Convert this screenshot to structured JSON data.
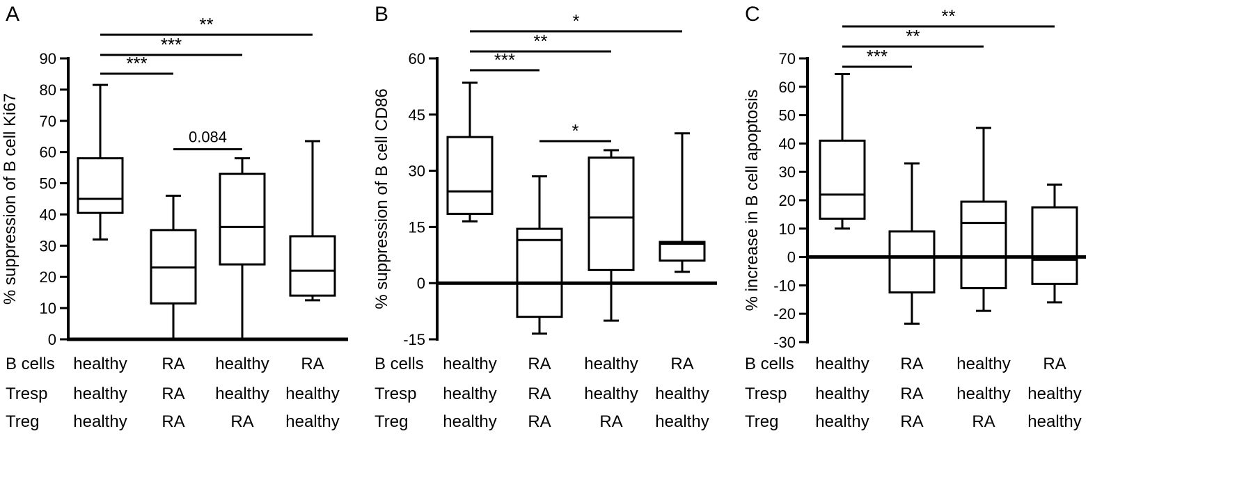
{
  "row_labels": [
    "B cells",
    "Tresp",
    "Treg"
  ],
  "chart_data": [
    {
      "type": "box",
      "panel_label": "A",
      "title": "",
      "xlabel": "",
      "ylabel": "% suppression of B cell Ki67",
      "ylim": [
        0,
        90
      ],
      "yticks": [
        0,
        10,
        20,
        30,
        40,
        50,
        60,
        70,
        80,
        90
      ],
      "categories": [
        {
          "B cells": "healthy",
          "Tresp": "healthy",
          "Treg": "healthy"
        },
        {
          "B cells": "RA",
          "Tresp": "RA",
          "Treg": "RA"
        },
        {
          "B cells": "healthy",
          "Tresp": "healthy",
          "Treg": "RA"
        },
        {
          "B cells": "RA",
          "Tresp": "healthy",
          "Treg": "healthy"
        }
      ],
      "boxes": [
        {
          "min": 32,
          "q1": 40.5,
          "median": 45,
          "q3": 58,
          "max": 81.5
        },
        {
          "min": 0,
          "q1": 11.5,
          "median": 23,
          "q3": 35,
          "max": 46
        },
        {
          "min": 0,
          "q1": 24,
          "median": 36,
          "q3": 53,
          "max": 58
        },
        {
          "min": 12.5,
          "q1": 14,
          "median": 22,
          "q3": 33,
          "max": 63.5
        }
      ],
      "significance": [
        {
          "from": 0,
          "to": 1,
          "label": "***"
        },
        {
          "from": 0,
          "to": 2,
          "label": "***"
        },
        {
          "from": 0,
          "to": 3,
          "label": "**"
        },
        {
          "from": 1,
          "to": 2,
          "label": "0.084"
        }
      ],
      "zero_line": false
    },
    {
      "type": "box",
      "panel_label": "B",
      "title": "",
      "xlabel": "",
      "ylabel": "% suppression of B cell CD86",
      "ylim": [
        -15,
        60
      ],
      "yticks": [
        -15,
        0,
        15,
        30,
        45,
        60
      ],
      "categories": [
        {
          "B cells": "healthy",
          "Tresp": "healthy",
          "Treg": "healthy"
        },
        {
          "B cells": "RA",
          "Tresp": "RA",
          "Treg": "RA"
        },
        {
          "B cells": "healthy",
          "Tresp": "healthy",
          "Treg": "RA"
        },
        {
          "B cells": "RA",
          "Tresp": "healthy",
          "Treg": "healthy"
        }
      ],
      "boxes": [
        {
          "min": 16.5,
          "q1": 18.5,
          "median": 24.5,
          "q3": 39,
          "max": 53.5
        },
        {
          "min": -13.5,
          "q1": -9,
          "median": 11.5,
          "q3": 14.5,
          "max": 28.5
        },
        {
          "min": -10,
          "q1": 3.5,
          "median": 17.5,
          "q3": 33.5,
          "max": 35.5
        },
        {
          "min": 3,
          "q1": 6,
          "median": 10.5,
          "q3": 11,
          "max": 40
        }
      ],
      "significance": [
        {
          "from": 0,
          "to": 1,
          "label": "***"
        },
        {
          "from": 0,
          "to": 2,
          "label": "**"
        },
        {
          "from": 0,
          "to": 3,
          "label": "*"
        },
        {
          "from": 1,
          "to": 2,
          "label": "*"
        }
      ],
      "zero_line": true
    },
    {
      "type": "box",
      "panel_label": "C",
      "title": "",
      "xlabel": "",
      "ylabel": "% increase in B cell apoptosis",
      "ylim": [
        -30,
        70
      ],
      "yticks": [
        -30,
        -20,
        -10,
        0,
        10,
        20,
        30,
        40,
        50,
        60,
        70
      ],
      "categories": [
        {
          "B cells": "healthy",
          "Tresp": "healthy",
          "Treg": "healthy"
        },
        {
          "B cells": "RA",
          "Tresp": "RA",
          "Treg": "RA"
        },
        {
          "B cells": "healthy",
          "Tresp": "healthy",
          "Treg": "RA"
        },
        {
          "B cells": "RA",
          "Tresp": "healthy",
          "Treg": "healthy"
        }
      ],
      "boxes": [
        {
          "min": 10,
          "q1": 13.5,
          "median": 22,
          "q3": 41,
          "max": 64.5
        },
        {
          "min": -23.5,
          "q1": -12.5,
          "median": 0,
          "q3": 9,
          "max": 33
        },
        {
          "min": -19,
          "q1": -11,
          "median": 12,
          "q3": 19.5,
          "max": 45.5
        },
        {
          "min": -16,
          "q1": -9.5,
          "median": -1,
          "q3": 17.5,
          "max": 25.5
        }
      ],
      "significance": [
        {
          "from": 0,
          "to": 1,
          "label": "***"
        },
        {
          "from": 0,
          "to": 2,
          "label": "**"
        },
        {
          "from": 0,
          "to": 3,
          "label": "**"
        }
      ],
      "zero_line": true
    }
  ]
}
